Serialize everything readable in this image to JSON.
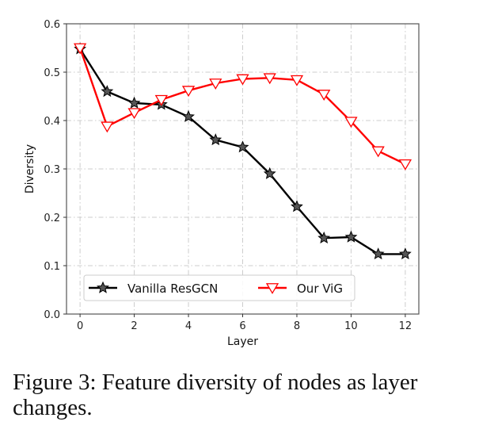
{
  "chart_data": {
    "type": "line",
    "title": "",
    "xlabel": "Layer",
    "ylabel": "Diversity",
    "x": [
      0,
      1,
      2,
      3,
      4,
      5,
      6,
      7,
      8,
      9,
      10,
      11,
      12
    ],
    "xlim": [
      -0.5,
      12.5
    ],
    "ylim": [
      0.0,
      0.6
    ],
    "xticks": [
      0,
      2,
      4,
      6,
      8,
      10,
      12
    ],
    "yticks": [
      0.0,
      0.1,
      0.2,
      0.3,
      0.4,
      0.5,
      0.6
    ],
    "xtick_labels": [
      "0",
      "2",
      "4",
      "6",
      "8",
      "10",
      "12"
    ],
    "ytick_labels": [
      "0.0",
      "0.1",
      "0.2",
      "0.3",
      "0.4",
      "0.5",
      "0.6"
    ],
    "grid": true,
    "legend_position": "lower-center",
    "series": [
      {
        "name": "Vanilla ResGCN",
        "color": "#000000",
        "marker": "star",
        "values": [
          0.548,
          0.46,
          0.436,
          0.433,
          0.408,
          0.36,
          0.345,
          0.29,
          0.222,
          0.157,
          0.159,
          0.124,
          0.124
        ]
      },
      {
        "name": "Our ViG",
        "color": "#ff0000",
        "marker": "triangle-down",
        "values": [
          0.55,
          0.388,
          0.416,
          0.443,
          0.462,
          0.477,
          0.486,
          0.488,
          0.484,
          0.454,
          0.398,
          0.337,
          0.31
        ]
      }
    ]
  },
  "caption": "Figure 3: Feature diversity of nodes as layer changes."
}
